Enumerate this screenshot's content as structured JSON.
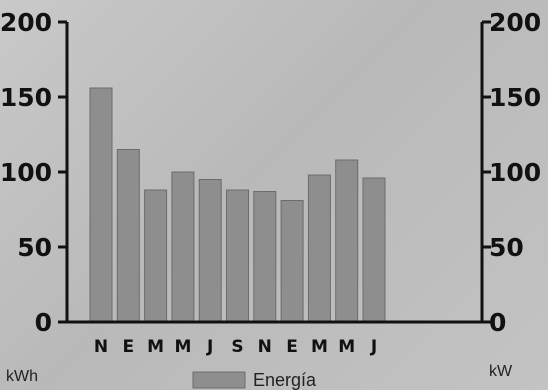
{
  "chart_data": {
    "type": "bar",
    "categories": [
      "N",
      "E",
      "M",
      "M",
      "J",
      "S",
      "N",
      "E",
      "M",
      "M",
      "J"
    ],
    "series": [
      {
        "name": "Energía",
        "values": [
          156,
          115,
          88,
          100,
          95,
          88,
          87,
          81,
          98,
          108,
          96
        ]
      }
    ],
    "y_left": {
      "unit": "kWh",
      "range": [
        0,
        200
      ],
      "ticks": [
        "0",
        "50",
        "100",
        "150",
        "200"
      ]
    },
    "y_right": {
      "unit": "kW",
      "range": [
        0,
        200
      ],
      "ticks": [
        "0",
        "50",
        "100",
        "150",
        "200"
      ]
    },
    "grid": false,
    "legend_position": "bottom-center",
    "colors": {
      "bar": "#8e8e8e",
      "bar_edge": "#6c6c6c",
      "axis": "#111111"
    }
  }
}
